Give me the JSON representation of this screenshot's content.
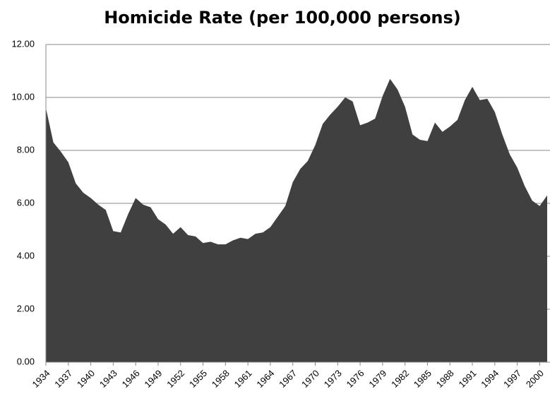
{
  "chart_data": {
    "type": "area",
    "title": "Homicide Rate (per 100,000 persons)",
    "x": [
      1934,
      1935,
      1936,
      1937,
      1938,
      1939,
      1940,
      1941,
      1942,
      1943,
      1944,
      1945,
      1946,
      1947,
      1948,
      1949,
      1950,
      1951,
      1952,
      1953,
      1954,
      1955,
      1956,
      1957,
      1958,
      1959,
      1960,
      1961,
      1962,
      1963,
      1964,
      1965,
      1966,
      1967,
      1968,
      1969,
      1970,
      1971,
      1972,
      1973,
      1974,
      1975,
      1976,
      1977,
      1978,
      1979,
      1980,
      1981,
      1982,
      1983,
      1984,
      1985,
      1986,
      1987,
      1988,
      1989,
      1990,
      1991,
      1992,
      1993,
      1994,
      1995,
      1996,
      1997,
      1998,
      1999,
      2000,
      2001
    ],
    "values": [
      9.6,
      8.3,
      7.95,
      7.55,
      6.75,
      6.4,
      6.2,
      5.95,
      5.75,
      4.95,
      4.9,
      5.6,
      6.2,
      5.95,
      5.85,
      5.4,
      5.2,
      4.85,
      5.1,
      4.8,
      4.75,
      4.5,
      4.55,
      4.45,
      4.45,
      4.6,
      4.7,
      4.65,
      4.85,
      4.9,
      5.1,
      5.5,
      5.9,
      6.8,
      7.3,
      7.6,
      8.2,
      9.0,
      9.35,
      9.65,
      10.0,
      9.85,
      8.95,
      9.05,
      9.2,
      10.05,
      10.7,
      10.3,
      9.65,
      8.6,
      8.4,
      8.35,
      9.05,
      8.7,
      8.9,
      9.15,
      9.9,
      10.4,
      9.9,
      9.95,
      9.45,
      8.6,
      7.85,
      7.35,
      6.65,
      6.1,
      5.9,
      6.3
    ],
    "color": "#404040",
    "xlim": [
      1934,
      2001
    ],
    "xticks": [
      1934,
      1937,
      1940,
      1943,
      1946,
      1949,
      1952,
      1955,
      1958,
      1961,
      1964,
      1967,
      1970,
      1973,
      1976,
      1979,
      1982,
      1985,
      1988,
      1991,
      1994,
      1997,
      2000
    ],
    "ylim": [
      0,
      12
    ],
    "yticks": [
      {
        "value": 0,
        "label": "0.00"
      },
      {
        "value": 2,
        "label": "2.00"
      },
      {
        "value": 4,
        "label": "4.00"
      },
      {
        "value": 6,
        "label": "6.00"
      },
      {
        "value": 8,
        "label": "8.00"
      },
      {
        "value": 10,
        "label": "10.00"
      },
      {
        "value": 12,
        "label": "12.00"
      }
    ],
    "grid": true
  }
}
